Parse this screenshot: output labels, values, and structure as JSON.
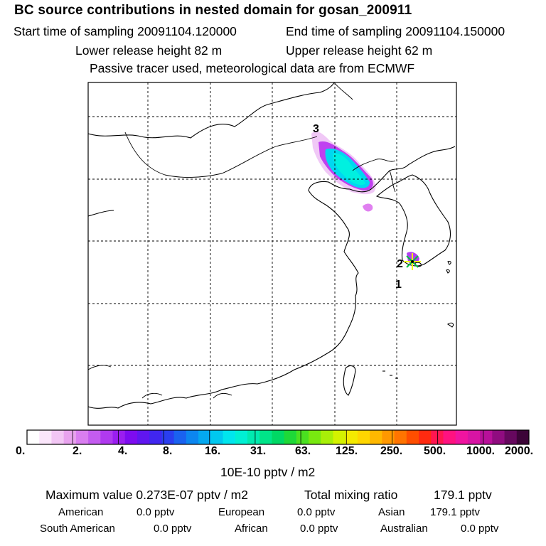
{
  "header": {
    "title": "BC  source contributions in nested domain for gosan_200911",
    "start_time": "Start time of sampling 20091104.120000",
    "end_time": "End time of sampling 20091104.150000",
    "lower_height": "Lower release height   82 m",
    "upper_height": "Upper release height   62 m",
    "tracer_note": "Passive tracer used, meteorological data are from ECMWF"
  },
  "map": {
    "trajectory_labels": [
      "3",
      "2",
      "1"
    ]
  },
  "colorbar": {
    "colors": [
      "#ffffff",
      "#fbe6fb",
      "#f2c6f4",
      "#e8a3ee",
      "#d97ef0",
      "#c45cf0",
      "#b03aef",
      "#9a1ef0",
      "#7d0cf0",
      "#6016f0",
      "#4026f0",
      "#2a3ef0",
      "#1a62f0",
      "#0c86f0",
      "#04a8f0",
      "#00c8f0",
      "#00e6ee",
      "#00f0d4",
      "#00eab0",
      "#00e488",
      "#00d864",
      "#1ed838",
      "#4ae020",
      "#78e810",
      "#a8ef08",
      "#d4f200",
      "#f4ea00",
      "#ffd600",
      "#ffb800",
      "#ff9800",
      "#ff7400",
      "#ff4e00",
      "#ff2a10",
      "#ff1650",
      "#ff1280",
      "#f014a0",
      "#d814a4",
      "#b8109a",
      "#900c80",
      "#66085e",
      "#3c0438"
    ],
    "tick_labels": [
      "0.",
      "2.",
      "4.",
      "8.",
      "16.",
      "31.",
      "63.",
      "125.",
      "250.",
      "500.",
      "1000.",
      "2000."
    ],
    "unit": "10E-10 pptv / m2"
  },
  "summary": {
    "max_value": "Maximum value  0.273E-07 pptv / m2",
    "total_label": "Total mixing ratio",
    "total_value": "179.1 pptv",
    "regions": [
      {
        "name": "American",
        "value": "0.0 pptv"
      },
      {
        "name": "European",
        "value": "0.0 pptv"
      },
      {
        "name": "Asian",
        "value": "179.1 pptv"
      },
      {
        "name": "South American",
        "value": "0.0 pptv"
      },
      {
        "name": "African",
        "value": "0.0 pptv"
      },
      {
        "name": "Australian",
        "value": "0.0 pptv"
      }
    ]
  }
}
